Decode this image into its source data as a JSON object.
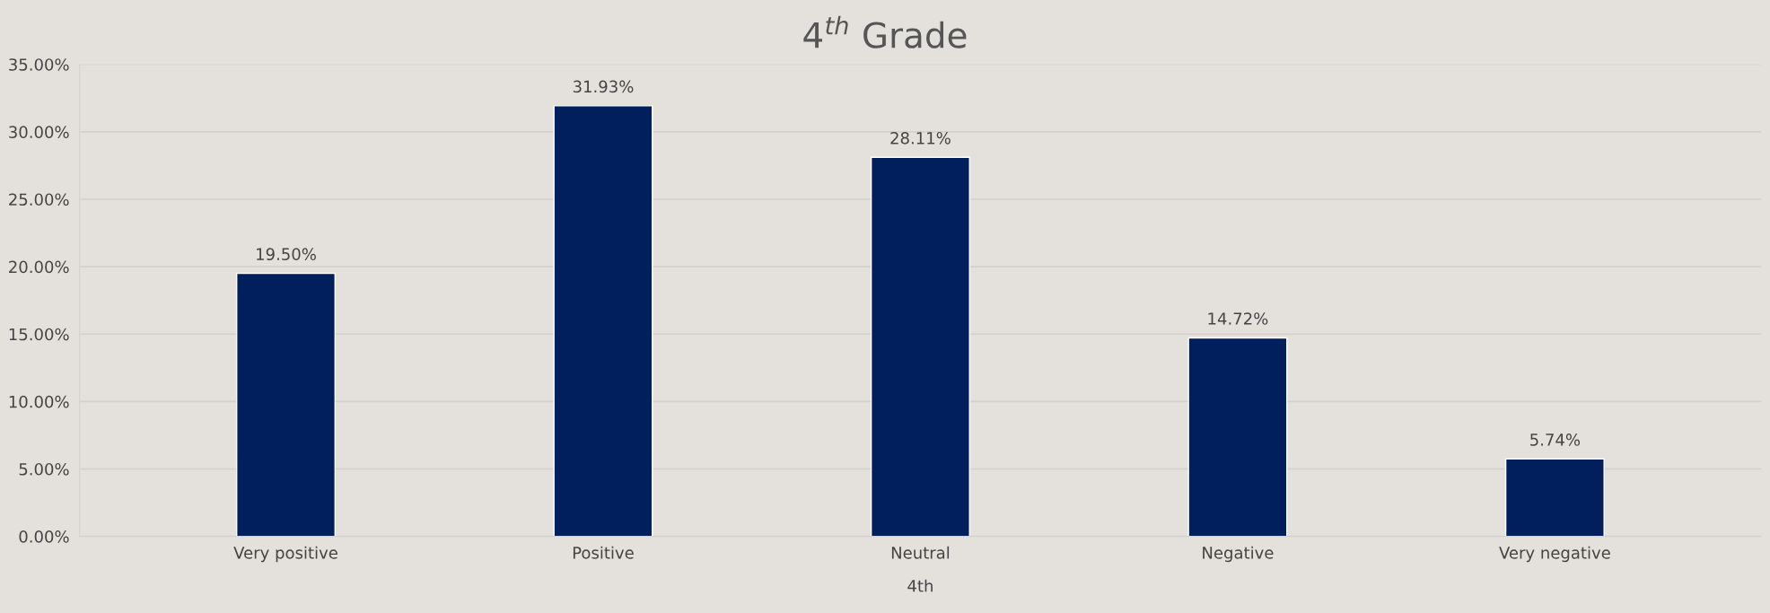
{
  "chart_data": {
    "type": "bar",
    "title": "4$^{th}$ Grade",
    "xlabel": "4th",
    "categories": [
      "Very positive",
      "Positive",
      "Neutral",
      "Negative",
      "Very negative"
    ],
    "values": [
      19.5,
      31.93,
      28.11,
      14.72,
      5.74
    ],
    "value_labels": [
      "19.50%",
      "31.93%",
      "28.11%",
      "14.72%",
      "5.74%"
    ],
    "color": "#001f5c",
    "ylim": [
      0,
      35
    ],
    "yticks": [
      {
        "value": 0,
        "label": "0.00%"
      },
      {
        "value": 5,
        "label": "5.00%"
      },
      {
        "value": 10,
        "label": "10.00%"
      },
      {
        "value": 15,
        "label": "15.00%"
      },
      {
        "value": 20,
        "label": "20.00%"
      },
      {
        "value": 25,
        "label": "25.00%"
      },
      {
        "value": 30,
        "label": "30.00%"
      },
      {
        "value": 35,
        "label": "35.00%"
      }
    ],
    "grid": "y",
    "legend": false
  }
}
